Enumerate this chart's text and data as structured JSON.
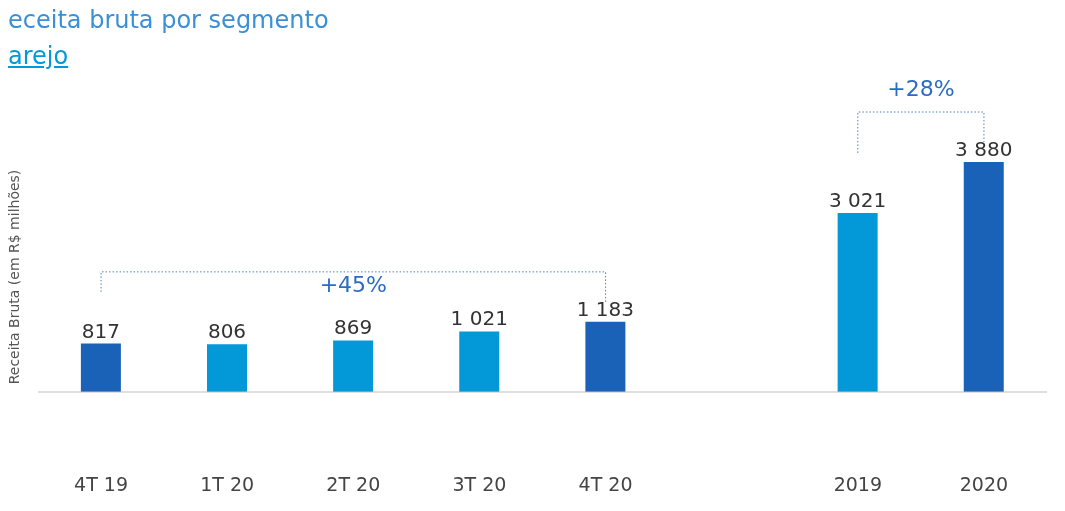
{
  "chart_data": {
    "type": "bar",
    "title": "eceita bruta por segmento",
    "subtitle": "arejo",
    "ylabel": "Receita Bruta (em R$ milhões)",
    "categories": [
      "4T 19",
      "1T 20",
      "2T 20",
      "3T 20",
      "4T 20",
      null,
      "2019",
      "2020"
    ],
    "values": [
      817,
      806,
      869,
      1021,
      1183,
      null,
      3021,
      3880
    ],
    "colors": [
      "#1a62b8",
      "#0399d9",
      "#0399d9",
      "#0399d9",
      "#1a62b8",
      null,
      "#0399d9",
      "#1a62b8"
    ],
    "value_labels": [
      "817",
      "806",
      "869",
      "1 021",
      "1 183",
      null,
      "3 021",
      "3 880"
    ],
    "annotations": [
      "+45%",
      "+28%"
    ],
    "grid": false,
    "legend": false
  }
}
